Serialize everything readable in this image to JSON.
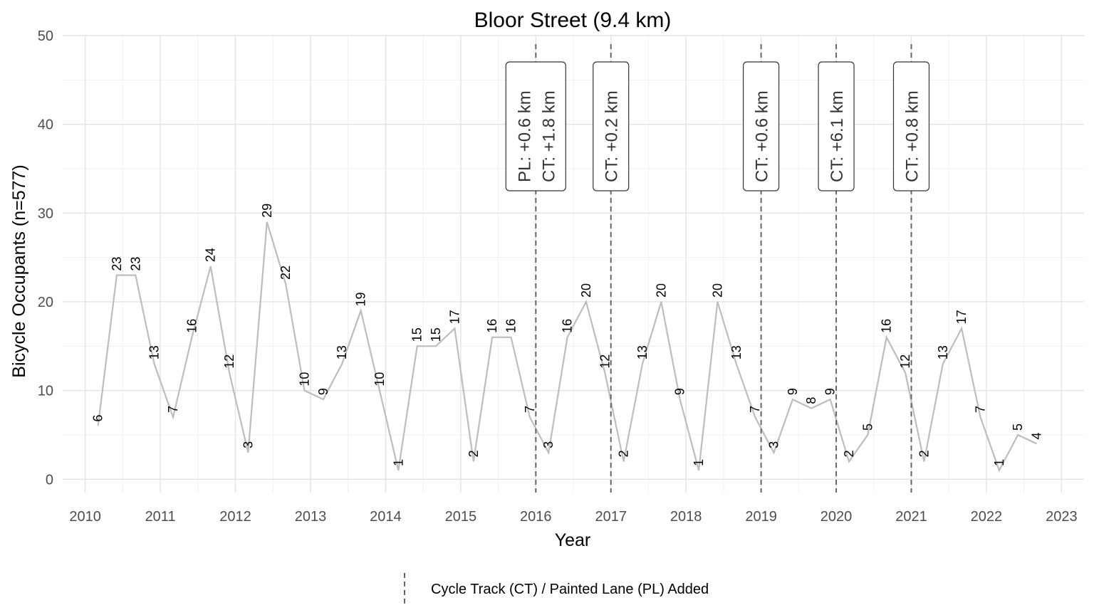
{
  "chart_data": {
    "type": "line",
    "title": "Bloor Street (9.4 km)",
    "xlabel": "Year",
    "ylabel": "Bicycle Occupants (n=577)",
    "xlim": [
      2009.7,
      2023.3
    ],
    "ylim": [
      -1.5,
      50
    ],
    "x_ticks": [
      2010,
      2011,
      2012,
      2013,
      2014,
      2015,
      2016,
      2017,
      2018,
      2019,
      2020,
      2021,
      2022,
      2023
    ],
    "y_ticks": [
      0,
      10,
      20,
      30,
      40,
      50
    ],
    "grid": true,
    "series": [
      {
        "color": "#bdbdbd",
        "x": [
          2010.17,
          2010.42,
          2010.67,
          2010.92,
          2011.17,
          2011.42,
          2011.67,
          2011.92,
          2012.17,
          2012.42,
          2012.67,
          2012.92,
          2013.17,
          2013.42,
          2013.67,
          2013.92,
          2014.17,
          2014.42,
          2014.67,
          2014.92,
          2015.17,
          2015.42,
          2015.67,
          2015.92,
          2016.17,
          2016.42,
          2016.67,
          2016.92,
          2017.17,
          2017.42,
          2017.67,
          2017.92,
          2018.17,
          2018.42,
          2018.67,
          2018.92,
          2019.17,
          2019.42,
          2019.67,
          2019.92,
          2020.17,
          2020.42,
          2020.67,
          2020.92,
          2021.17,
          2021.42,
          2021.67,
          2021.92,
          2022.17,
          2022.42,
          2022.67
        ],
        "values": [
          6,
          23,
          23,
          13,
          7,
          16,
          24,
          12,
          3,
          29,
          22,
          10,
          9,
          13,
          19,
          10,
          1,
          15,
          15,
          17,
          2,
          16,
          16,
          7,
          3,
          16,
          20,
          12,
          2,
          13,
          20,
          9,
          1,
          20,
          13,
          7,
          3,
          9,
          8,
          9,
          2,
          5,
          16,
          12,
          2,
          13,
          17,
          7,
          1,
          5,
          4
        ]
      }
    ],
    "events": [
      {
        "x": 2016,
        "lines": [
          "PL: +0.6 km",
          "CT: +1.8 km"
        ]
      },
      {
        "x": 2017,
        "lines": [
          "CT: +0.2 km"
        ]
      },
      {
        "x": 2019,
        "lines": [
          "CT: +0.6 km"
        ]
      },
      {
        "x": 2020,
        "lines": [
          "CT: +6.1 km"
        ]
      },
      {
        "x": 2021,
        "lines": [
          "CT: +0.8 km"
        ]
      }
    ],
    "legend": {
      "position": "bottom",
      "entries": [
        {
          "label": "Cycle Track (CT) / Painted Lane (PL) Added",
          "style": "dashed",
          "color": "#666666"
        }
      ]
    }
  }
}
